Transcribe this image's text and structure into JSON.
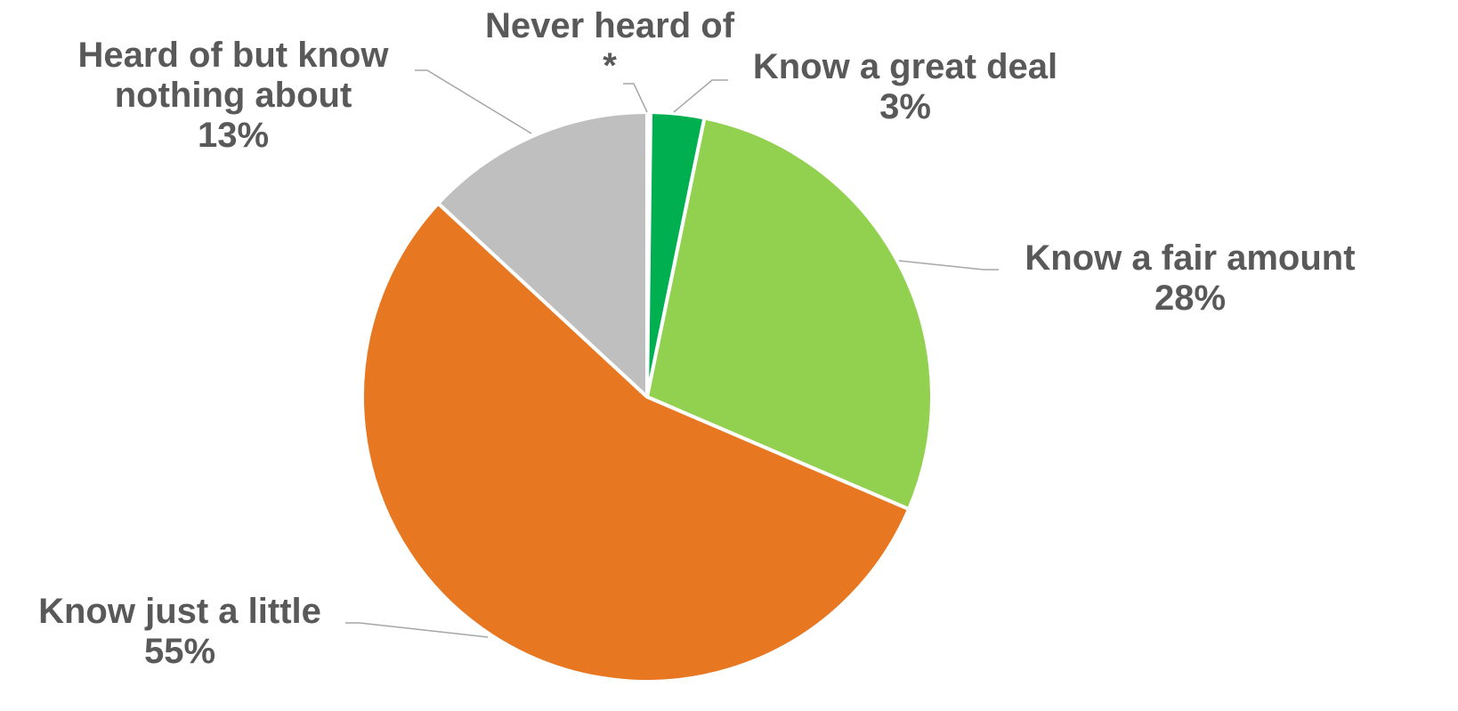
{
  "chart_data": {
    "type": "pie",
    "title": "",
    "categories": [
      "Never heard of",
      "Know a great deal",
      "Know a fair amount",
      "Know just a little",
      "Heard of but know nothing about"
    ],
    "values": [
      0.2,
      3,
      28,
      55,
      13
    ],
    "value_labels": [
      "*",
      "3%",
      "28%",
      "55%",
      "13%"
    ],
    "label_lines": [
      [
        "Never heard of"
      ],
      [
        "Know a great deal"
      ],
      [
        "Know a fair amount"
      ],
      [
        "Know just a little"
      ],
      [
        "Heard of but know",
        "nothing about"
      ]
    ],
    "colors": [
      "#00b050",
      "#00b050",
      "#92d050",
      "#e87722",
      "#bfbfbf"
    ],
    "start_angle": "12 o'clock",
    "direction": "clockwise",
    "legend": "none",
    "label_style": "outside with leader lines"
  }
}
